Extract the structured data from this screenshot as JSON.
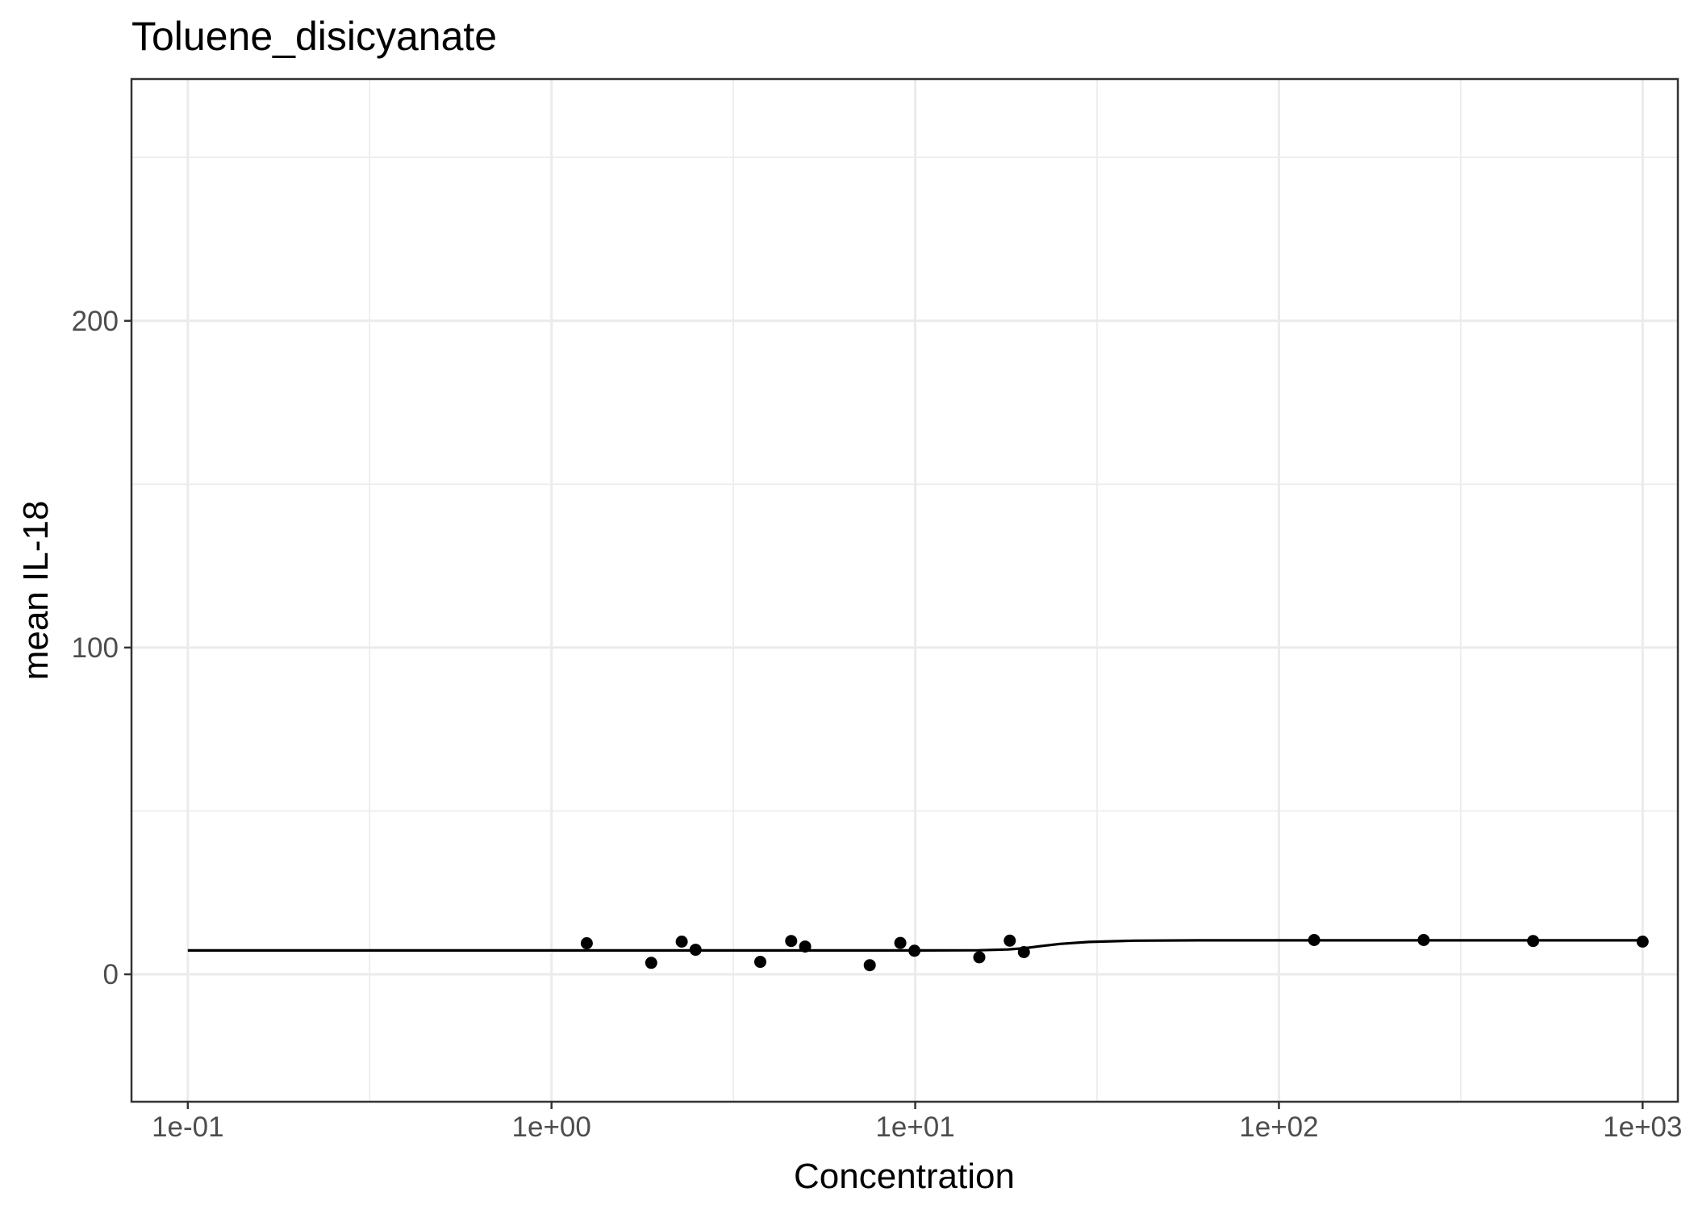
{
  "chart_data": {
    "type": "scatter",
    "title": "Toluene_disicyanate",
    "xlabel": "Concentration",
    "ylabel": "mean IL-18",
    "x_scale": "log10",
    "xlim": [
      0.07,
      1250
    ],
    "ylim": [
      -39,
      274
    ],
    "x_ticks": [
      0.1,
      1,
      10,
      100,
      1000
    ],
    "x_tick_labels": [
      "1e-01",
      "1e+00",
      "1e+01",
      "1e+02",
      "1e+03"
    ],
    "y_ticks": [
      0,
      100,
      200
    ],
    "y_tick_labels": [
      "0",
      "100",
      "200"
    ],
    "grid": true,
    "series": [
      {
        "type": "points",
        "x": [
          1.25,
          1.88,
          2.28,
          2.49,
          3.75,
          4.56,
          4.98,
          7.5,
          9.1,
          9.95,
          15,
          18.2,
          19.9,
          125,
          250,
          500,
          1000
        ],
        "y": [
          9.5,
          3.5,
          10,
          7.5,
          3.8,
          10.2,
          8.5,
          2.8,
          9.6,
          7.2,
          5.2,
          10.3,
          6.8,
          10.5,
          10.5,
          10.2,
          10
        ]
      },
      {
        "type": "line",
        "x": [
          0.1,
          1,
          5,
          10,
          15,
          18,
          20,
          22,
          25,
          30,
          40,
          60,
          100,
          300,
          1000
        ],
        "y": [
          7.3,
          7.3,
          7.3,
          7.3,
          7.35,
          7.6,
          8.0,
          8.6,
          9.3,
          9.9,
          10.3,
          10.4,
          10.4,
          10.4,
          10.4
        ]
      }
    ]
  }
}
